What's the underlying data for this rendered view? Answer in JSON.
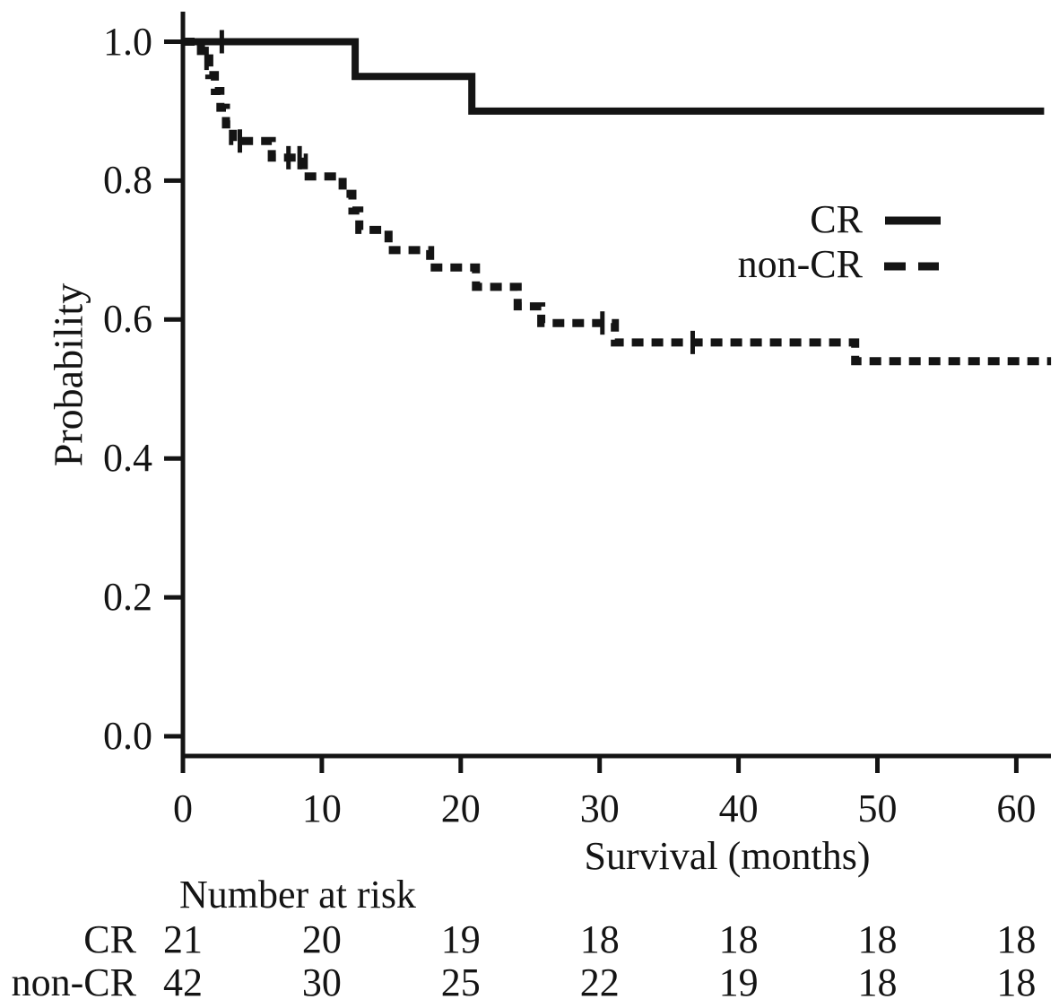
{
  "figure": {
    "y_axis": {
      "label": "Probability",
      "ticks": [
        "1.0",
        "0.8",
        "0.6",
        "0.4",
        "0.2",
        "0.0"
      ]
    },
    "x_axis": {
      "label": "Survival (months)",
      "ticks": [
        "0",
        "10",
        "20",
        "30",
        "40",
        "50",
        "60"
      ]
    },
    "legend": [
      {
        "label": "CR",
        "style": "solid"
      },
      {
        "label": "non-CR",
        "style": "dashed"
      }
    ],
    "risk_table": {
      "title": "Number at risk",
      "rows": [
        {
          "label": "CR",
          "values": [
            "21",
            "20",
            "19",
            "18",
            "18",
            "18",
            "18"
          ]
        },
        {
          "label": "non-CR",
          "values": [
            "42",
            "30",
            "25",
            "22",
            "19",
            "18",
            "18"
          ]
        }
      ]
    }
  },
  "chart_data": {
    "type": "line",
    "subtype": "kaplan-meier-step",
    "title": "",
    "xlabel": "Survival (months)",
    "ylabel": "Probability",
    "xlim": [
      0,
      62.5
    ],
    "ylim": [
      0,
      1.0
    ],
    "x_ticks": [
      0,
      10,
      20,
      30,
      40,
      50,
      60
    ],
    "y_ticks": [
      1.0,
      0.8,
      0.6,
      0.4,
      0.2,
      0.0
    ],
    "grid": false,
    "legend_position": "upper-right-inside",
    "series": [
      {
        "name": "CR",
        "line": "solid",
        "steps": [
          [
            0,
            1.0
          ],
          [
            12.4,
            0.95
          ],
          [
            20.8,
            0.9
          ]
        ],
        "end_x": 62.0,
        "censors": [
          [
            2.8,
            1.0
          ]
        ]
      },
      {
        "name": "non-CR",
        "line": "dashed",
        "steps": [
          [
            0,
            1.0
          ],
          [
            1.3,
            0.976
          ],
          [
            1.9,
            0.952
          ],
          [
            2.3,
            0.929
          ],
          [
            2.7,
            0.905
          ],
          [
            3.1,
            0.881
          ],
          [
            3.6,
            0.857
          ],
          [
            6.4,
            0.833
          ],
          [
            8.7,
            0.806
          ],
          [
            11.5,
            0.781
          ],
          [
            12.2,
            0.757
          ],
          [
            12.7,
            0.729
          ],
          [
            14.8,
            0.7
          ],
          [
            17.8,
            0.675
          ],
          [
            21.1,
            0.647
          ],
          [
            24.1,
            0.619
          ],
          [
            25.8,
            0.595
          ],
          [
            31.1,
            0.567
          ],
          [
            48.4,
            0.54
          ]
        ],
        "end_x": 62.5,
        "censors": [
          [
            1.7,
            0.976
          ],
          [
            4.1,
            0.857
          ],
          [
            7.6,
            0.833
          ],
          [
            8.4,
            0.833
          ],
          [
            30.2,
            0.595
          ],
          [
            36.7,
            0.567
          ]
        ]
      }
    ],
    "number_at_risk": {
      "times": [
        0,
        10,
        20,
        30,
        40,
        50,
        60
      ],
      "CR": [
        21,
        20,
        19,
        18,
        18,
        18,
        18
      ],
      "non-CR": [
        42,
        30,
        25,
        22,
        19,
        18,
        18
      ]
    },
    "colors": {
      "line": "#141414",
      "background": "#ffffff"
    }
  }
}
